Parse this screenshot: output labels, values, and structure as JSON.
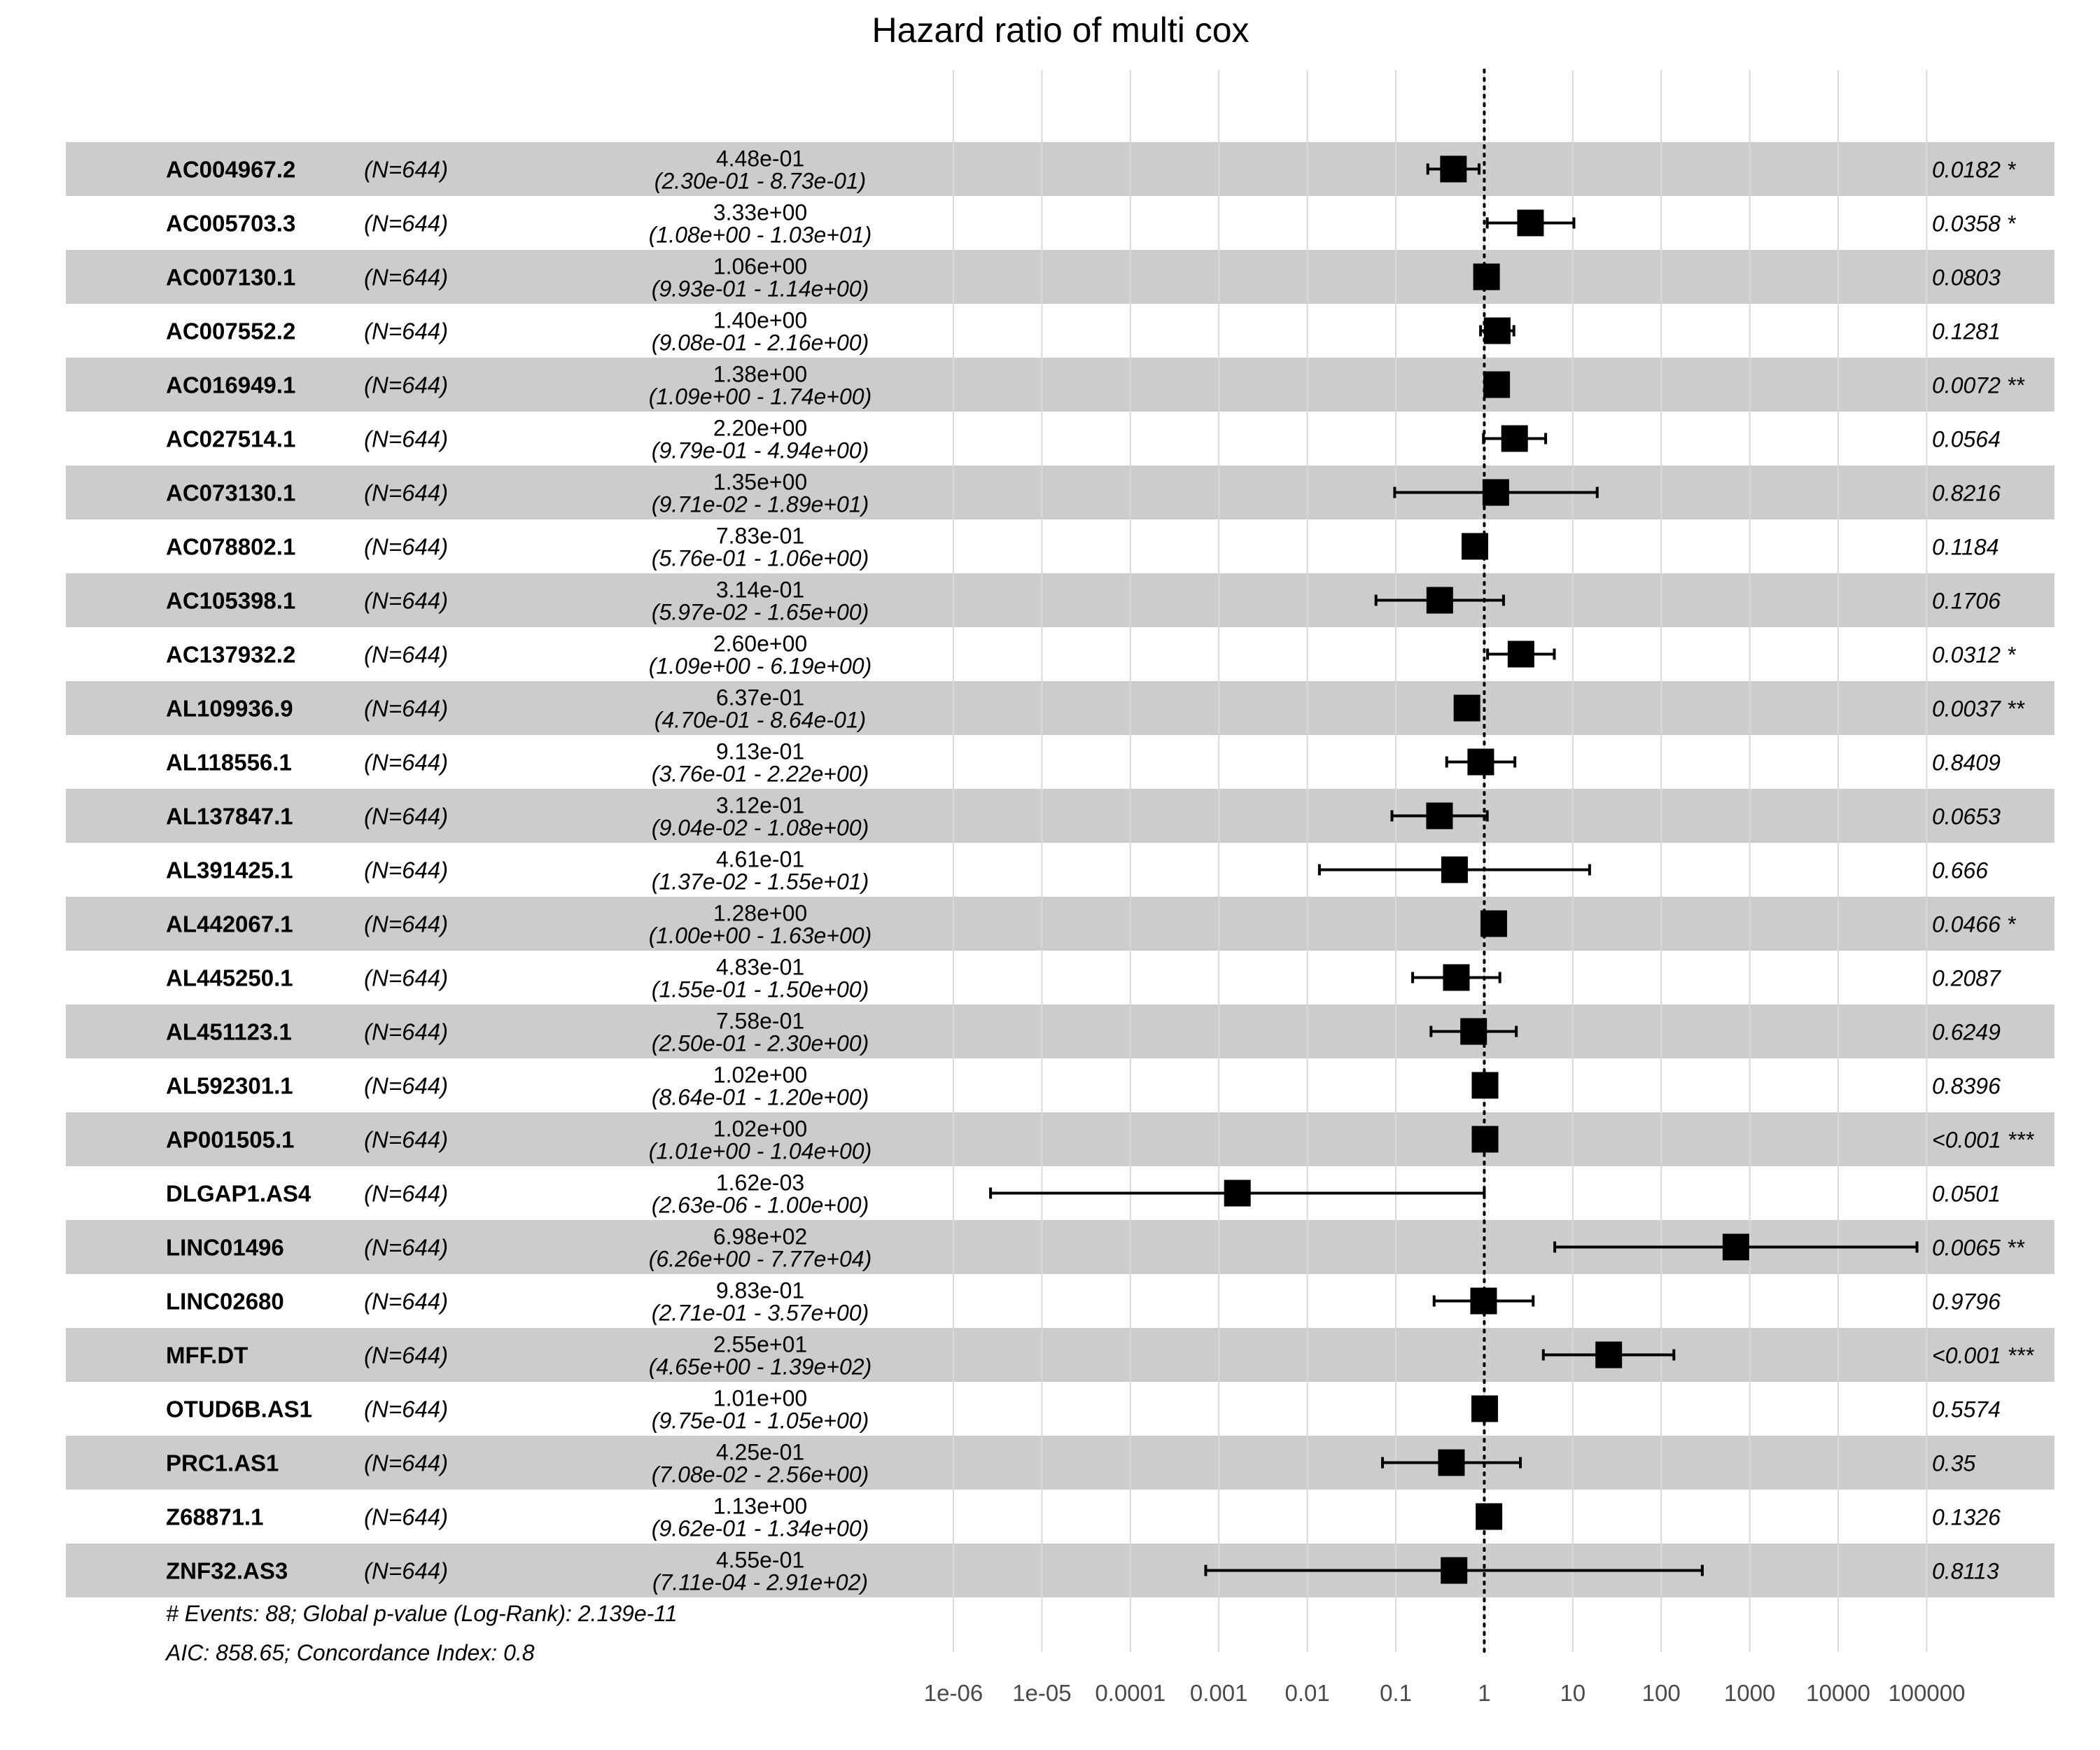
{
  "chart_data": {
    "type": "forest",
    "title": "Hazard ratio of multi cox",
    "x_scale": "log10",
    "xlim": [
      1e-06,
      100000
    ],
    "x_ticks": [
      "1e-06",
      "1e-05",
      "0.0001",
      "0.001",
      "0.01",
      "0.1",
      "1",
      "10",
      "100",
      "1000",
      "10000",
      "100000"
    ],
    "reference_line": 1,
    "rows": [
      {
        "variable": "AC004967.2",
        "n": "(N=644)",
        "hr": 0.448,
        "lower": 0.23,
        "upper": 0.873,
        "hr_text": "4.48e-01",
        "ci_text": "(2.30e-01 - 8.73e-01)",
        "p": "0.0182 *"
      },
      {
        "variable": "AC005703.3",
        "n": "(N=644)",
        "hr": 3.33,
        "lower": 1.08,
        "upper": 10.3,
        "hr_text": "3.33e+00",
        "ci_text": "(1.08e+00 - 1.03e+01)",
        "p": "0.0358 *"
      },
      {
        "variable": "AC007130.1",
        "n": "(N=644)",
        "hr": 1.06,
        "lower": 0.993,
        "upper": 1.14,
        "hr_text": "1.06e+00",
        "ci_text": "(9.93e-01 - 1.14e+00)",
        "p": "0.0803"
      },
      {
        "variable": "AC007552.2",
        "n": "(N=644)",
        "hr": 1.4,
        "lower": 0.908,
        "upper": 2.16,
        "hr_text": "1.40e+00",
        "ci_text": "(9.08e-01 - 2.16e+00)",
        "p": "0.1281"
      },
      {
        "variable": "AC016949.1",
        "n": "(N=644)",
        "hr": 1.38,
        "lower": 1.09,
        "upper": 1.74,
        "hr_text": "1.38e+00",
        "ci_text": "(1.09e+00 - 1.74e+00)",
        "p": "0.0072 **"
      },
      {
        "variable": "AC027514.1",
        "n": "(N=644)",
        "hr": 2.2,
        "lower": 0.979,
        "upper": 4.94,
        "hr_text": "2.20e+00",
        "ci_text": "(9.79e-01 - 4.94e+00)",
        "p": "0.0564"
      },
      {
        "variable": "AC073130.1",
        "n": "(N=644)",
        "hr": 1.35,
        "lower": 0.0971,
        "upper": 18.9,
        "hr_text": "1.35e+00",
        "ci_text": "(9.71e-02 - 1.89e+01)",
        "p": "0.8216"
      },
      {
        "variable": "AC078802.1",
        "n": "(N=644)",
        "hr": 0.783,
        "lower": 0.576,
        "upper": 1.06,
        "hr_text": "7.83e-01",
        "ci_text": "(5.76e-01 - 1.06e+00)",
        "p": "0.1184"
      },
      {
        "variable": "AC105398.1",
        "n": "(N=644)",
        "hr": 0.314,
        "lower": 0.0597,
        "upper": 1.65,
        "hr_text": "3.14e-01",
        "ci_text": "(5.97e-02 - 1.65e+00)",
        "p": "0.1706"
      },
      {
        "variable": "AC137932.2",
        "n": "(N=644)",
        "hr": 2.6,
        "lower": 1.09,
        "upper": 6.19,
        "hr_text": "2.60e+00",
        "ci_text": "(1.09e+00 - 6.19e+00)",
        "p": "0.0312 *"
      },
      {
        "variable": "AL109936.9",
        "n": "(N=644)",
        "hr": 0.637,
        "lower": 0.47,
        "upper": 0.864,
        "hr_text": "6.37e-01",
        "ci_text": "(4.70e-01 - 8.64e-01)",
        "p": "0.0037 **"
      },
      {
        "variable": "AL118556.1",
        "n": "(N=644)",
        "hr": 0.913,
        "lower": 0.376,
        "upper": 2.22,
        "hr_text": "9.13e-01",
        "ci_text": "(3.76e-01 - 2.22e+00)",
        "p": "0.8409"
      },
      {
        "variable": "AL137847.1",
        "n": "(N=644)",
        "hr": 0.312,
        "lower": 0.0904,
        "upper": 1.08,
        "hr_text": "3.12e-01",
        "ci_text": "(9.04e-02 - 1.08e+00)",
        "p": "0.0653"
      },
      {
        "variable": "AL391425.1",
        "n": "(N=644)",
        "hr": 0.461,
        "lower": 0.0137,
        "upper": 15.5,
        "hr_text": "4.61e-01",
        "ci_text": "(1.37e-02 - 1.55e+01)",
        "p": "0.666"
      },
      {
        "variable": "AL442067.1",
        "n": "(N=644)",
        "hr": 1.28,
        "lower": 1.0,
        "upper": 1.63,
        "hr_text": "1.28e+00",
        "ci_text": "(1.00e+00 - 1.63e+00)",
        "p": "0.0466 *"
      },
      {
        "variable": "AL445250.1",
        "n": "(N=644)",
        "hr": 0.483,
        "lower": 0.155,
        "upper": 1.5,
        "hr_text": "4.83e-01",
        "ci_text": "(1.55e-01 - 1.50e+00)",
        "p": "0.2087"
      },
      {
        "variable": "AL451123.1",
        "n": "(N=644)",
        "hr": 0.758,
        "lower": 0.25,
        "upper": 2.3,
        "hr_text": "7.58e-01",
        "ci_text": "(2.50e-01 - 2.30e+00)",
        "p": "0.6249"
      },
      {
        "variable": "AL592301.1",
        "n": "(N=644)",
        "hr": 1.02,
        "lower": 0.864,
        "upper": 1.2,
        "hr_text": "1.02e+00",
        "ci_text": "(8.64e-01 - 1.20e+00)",
        "p": "0.8396"
      },
      {
        "variable": "AP001505.1",
        "n": "(N=644)",
        "hr": 1.02,
        "lower": 1.01,
        "upper": 1.04,
        "hr_text": "1.02e+00",
        "ci_text": "(1.01e+00 - 1.04e+00)",
        "p": "<0.001 ***"
      },
      {
        "variable": "DLGAP1.AS4",
        "n": "(N=644)",
        "hr": 0.00162,
        "lower": 2.63e-06,
        "upper": 1.0,
        "hr_text": "1.62e-03",
        "ci_text": "(2.63e-06 - 1.00e+00)",
        "p": "0.0501"
      },
      {
        "variable": "LINC01496",
        "n": "(N=644)",
        "hr": 698,
        "lower": 6.26,
        "upper": 77700,
        "hr_text": "6.98e+02",
        "ci_text": "(6.26e+00 - 7.77e+04)",
        "p": "0.0065 **"
      },
      {
        "variable": "LINC02680",
        "n": "(N=644)",
        "hr": 0.983,
        "lower": 0.271,
        "upper": 3.57,
        "hr_text": "9.83e-01",
        "ci_text": "(2.71e-01 - 3.57e+00)",
        "p": "0.9796"
      },
      {
        "variable": "MFF.DT",
        "n": "(N=644)",
        "hr": 25.5,
        "lower": 4.65,
        "upper": 139,
        "hr_text": "2.55e+01",
        "ci_text": "(4.65e+00 - 1.39e+02)",
        "p": "<0.001 ***"
      },
      {
        "variable": "OTUD6B.AS1",
        "n": "(N=644)",
        "hr": 1.01,
        "lower": 0.975,
        "upper": 1.05,
        "hr_text": "1.01e+00",
        "ci_text": "(9.75e-01 - 1.05e+00)",
        "p": "0.5574"
      },
      {
        "variable": "PRC1.AS1",
        "n": "(N=644)",
        "hr": 0.425,
        "lower": 0.0708,
        "upper": 2.56,
        "hr_text": "4.25e-01",
        "ci_text": "(7.08e-02 - 2.56e+00)",
        "p": "0.35"
      },
      {
        "variable": "Z68871.1",
        "n": "(N=644)",
        "hr": 1.13,
        "lower": 0.962,
        "upper": 1.34,
        "hr_text": "1.13e+00",
        "ci_text": "(9.62e-01 - 1.34e+00)",
        "p": "0.1326"
      },
      {
        "variable": "ZNF32.AS3",
        "n": "(N=644)",
        "hr": 0.455,
        "lower": 0.000711,
        "upper": 291,
        "hr_text": "4.55e-01",
        "ci_text": "(7.11e-04 - 2.91e+02)",
        "p": "0.8113"
      }
    ],
    "footer": [
      "# Events: 88; Global p-value (Log-Rank): 2.139e-11",
      "AIC: 858.65; Concordance Index: 0.8"
    ],
    "colors": {
      "stripe": "#cccccc",
      "grid": "#d9d9d9",
      "marker": "#000000",
      "tick_text": "#4a4a4a"
    }
  }
}
